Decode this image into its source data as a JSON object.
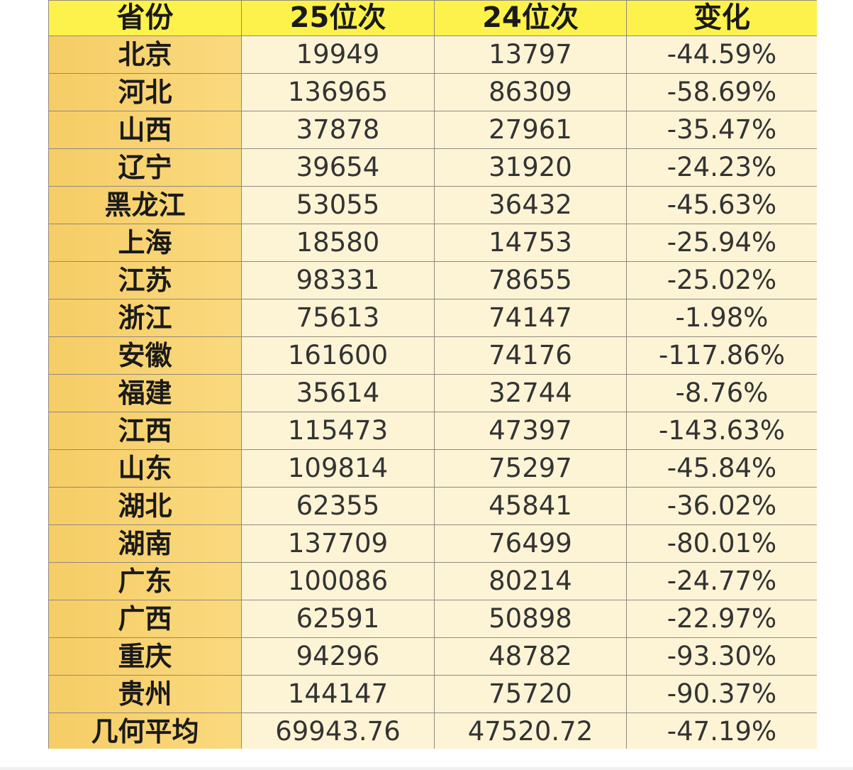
{
  "table": {
    "headers": [
      "省份",
      "25位次",
      "24位次",
      "变化"
    ],
    "rows": [
      [
        "北京",
        "19949",
        "13797",
        "-44.59%"
      ],
      [
        "河北",
        "136965",
        "86309",
        "-58.69%"
      ],
      [
        "山西",
        "37878",
        "27961",
        "-35.47%"
      ],
      [
        "辽宁",
        "39654",
        "31920",
        "-24.23%"
      ],
      [
        "黑龙江",
        "53055",
        "36432",
        "-45.63%"
      ],
      [
        "上海",
        "18580",
        "14753",
        "-25.94%"
      ],
      [
        "江苏",
        "98331",
        "78655",
        "-25.02%"
      ],
      [
        "浙江",
        "75613",
        "74147",
        "-1.98%"
      ],
      [
        "安徽",
        "161600",
        "74176",
        "-117.86%"
      ],
      [
        "福建",
        "35614",
        "32744",
        "-8.76%"
      ],
      [
        "江西",
        "115473",
        "47397",
        "-143.63%"
      ],
      [
        "山东",
        "109814",
        "75297",
        "-45.84%"
      ],
      [
        "湖北",
        "62355",
        "45841",
        "-36.02%"
      ],
      [
        "湖南",
        "137709",
        "76499",
        "-80.01%"
      ],
      [
        "广东",
        "100086",
        "80214",
        "-24.77%"
      ],
      [
        "广西",
        "62591",
        "50898",
        "-22.97%"
      ],
      [
        "重庆",
        "94296",
        "48782",
        "-93.30%"
      ],
      [
        "贵州",
        "144147",
        "75720",
        "-90.37%"
      ],
      [
        "几何平均",
        "69943.76",
        "47520.72",
        "-47.19%"
      ]
    ]
  },
  "colors": {
    "header_bg": "#fdf24c",
    "province_bg": "#f6cd66",
    "cell_bg": "#fdf4d6",
    "grid": "#8f8a7e"
  }
}
